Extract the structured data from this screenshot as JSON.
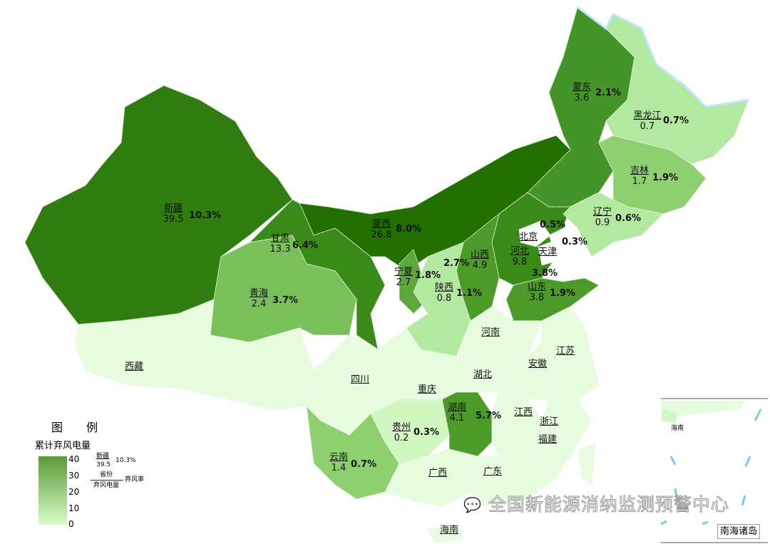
{
  "legend": {
    "title": "图 例",
    "subtitle": "累计弃风电量",
    "ticks": [
      "40",
      "30",
      "20",
      "10",
      "0"
    ],
    "range": [
      0,
      40
    ],
    "example": {
      "province": "新疆",
      "energy": "39.5",
      "rate": "10.3%"
    },
    "key": {
      "province": "省份",
      "energy": "弃风电量",
      "rate": "弃风率"
    },
    "color_low": "#d8fcc8",
    "color_high": "#236f00"
  },
  "provinces": [
    {
      "id": "xinjiang",
      "name": "新疆",
      "value": "39.5",
      "rate": "10.3%",
      "color": "#2f7d10"
    },
    {
      "id": "mengxi",
      "name": "蒙西",
      "value": "26.8",
      "rate": "8.0%",
      "color": "#236f00"
    },
    {
      "id": "gansu",
      "name": "甘肃",
      "value": "13.3",
      "rate": "6.4%",
      "color": "#3a8a1a"
    },
    {
      "id": "hebei",
      "name": "河北",
      "value": "9.8",
      "rate": "3.8%",
      "color": "#3a8a1a"
    },
    {
      "id": "shanxi",
      "name": "山西",
      "value": "4.9",
      "rate": "2.7%",
      "color": "#4c9a2a"
    },
    {
      "id": "hunan",
      "name": "湖南",
      "value": "4.1",
      "rate": "5.7%",
      "color": "#4c9a2a"
    },
    {
      "id": "shandong",
      "name": "山东",
      "value": "3.8",
      "rate": "1.9%",
      "color": "#4c9a2a"
    },
    {
      "id": "mengdong",
      "name": "蒙东",
      "value": "3.6",
      "rate": "2.1%",
      "color": "#45942a"
    },
    {
      "id": "ningxia",
      "name": "宁夏",
      "value": "2.7",
      "rate": "1.8%",
      "color": "#5ca83c"
    },
    {
      "id": "qinghai",
      "name": "青海",
      "value": "2.4",
      "rate": "3.7%",
      "color": "#79c05a"
    },
    {
      "id": "jilin",
      "name": "吉林",
      "value": "1.7",
      "rate": "1.9%",
      "color": "#8ed070"
    },
    {
      "id": "yunnan",
      "name": "云南",
      "value": "1.4",
      "rate": "0.7%",
      "color": "#8ed070"
    },
    {
      "id": "liaoning",
      "name": "辽宁",
      "value": "0.9",
      "rate": "0.6%",
      "color": "#b3e8a0"
    },
    {
      "id": "shaanxi",
      "name": "陕西",
      "value": "0.8",
      "rate": "1.1%",
      "color": "#b3e8a0"
    },
    {
      "id": "heilongjiang",
      "name": "黑龙江",
      "value": "0.7",
      "rate": "0.7%",
      "color": "#b3e8a0"
    },
    {
      "id": "guizhou",
      "name": "贵州",
      "value": "0.2",
      "rate": "0.3%",
      "color": "#d2f8c2"
    },
    {
      "id": "beijing",
      "name": "北京",
      "value": "",
      "rate": "0.5%",
      "color": "#ffffff"
    },
    {
      "id": "tianjin",
      "name": "天津",
      "value": "",
      "rate": "0.3%",
      "color": "#ffffff"
    },
    {
      "id": "xizang",
      "name": "西藏",
      "value": "",
      "rate": "",
      "color": "#e8fde0"
    },
    {
      "id": "sichuan",
      "name": "四川",
      "value": "",
      "rate": "",
      "color": "#e8fde0"
    },
    {
      "id": "chongqing",
      "name": "重庆",
      "value": "",
      "rate": "",
      "color": "#e8fde0"
    },
    {
      "id": "henan",
      "name": "河南",
      "value": "",
      "rate": "",
      "color": "#e8fde0"
    },
    {
      "id": "hubei",
      "name": "湖北",
      "value": "",
      "rate": "",
      "color": "#e8fde0"
    },
    {
      "id": "anhui",
      "name": "安徽",
      "value": "",
      "rate": "",
      "color": "#e8fde0"
    },
    {
      "id": "jiangsu",
      "name": "江苏",
      "value": "",
      "rate": "",
      "color": "#e8fde0"
    },
    {
      "id": "jiangxi",
      "name": "江西",
      "value": "",
      "rate": "",
      "color": "#e8fde0"
    },
    {
      "id": "zhejiang",
      "name": "浙江",
      "value": "",
      "rate": "",
      "color": "#e8fde0"
    },
    {
      "id": "fujian",
      "name": "福建",
      "value": "",
      "rate": "",
      "color": "#e8fde0"
    },
    {
      "id": "guangxi",
      "name": "广西",
      "value": "",
      "rate": "",
      "color": "#e8fde0"
    },
    {
      "id": "guangdong",
      "name": "广东",
      "value": "",
      "rate": "",
      "color": "#e8fde0"
    },
    {
      "id": "hainan",
      "name": "海南",
      "value": "",
      "rate": "",
      "color": "#e8fde0"
    },
    {
      "id": "taiwan",
      "name": "",
      "value": "",
      "rate": "",
      "color": "#e8fde0"
    }
  ],
  "inset": {
    "label": "南海诸岛",
    "hainan_label": "海南"
  },
  "watermark": "全国新能源消纳监测预警中心",
  "watermark_icon": "wechat-icon"
}
